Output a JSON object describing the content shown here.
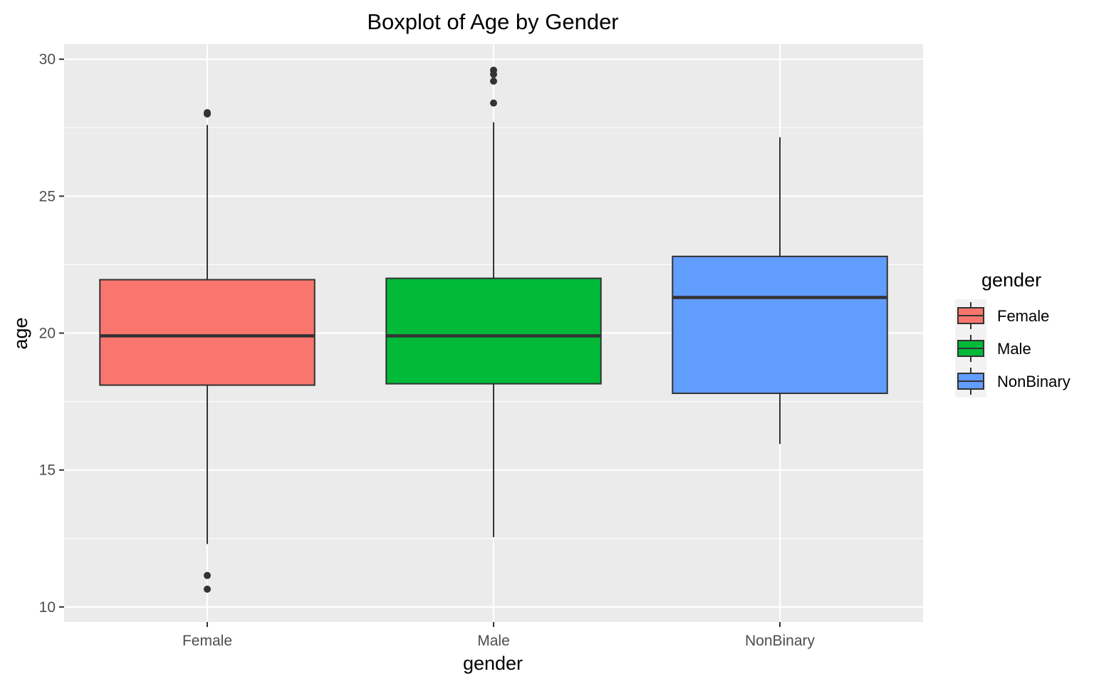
{
  "chart_data": {
    "type": "boxplot",
    "title": "Boxplot of Age by Gender",
    "xlabel": "gender",
    "ylabel": "age",
    "ylim": [
      9.45,
      30.55
    ],
    "yticks": [
      10,
      15,
      20,
      25,
      30
    ],
    "ytick_labels": [
      "10",
      "15",
      "20",
      "25",
      "30"
    ],
    "grid": true,
    "legend": {
      "title": "gender",
      "position": "right"
    },
    "categories": [
      "Female",
      "Male",
      "NonBinary"
    ],
    "series": [
      {
        "name": "Female",
        "color": "#F8766D",
        "whisker_low": 12.3,
        "q1": 18.1,
        "median": 19.9,
        "q3": 21.95,
        "whisker_high": 27.6,
        "outliers": [
          28.0,
          28.05,
          11.15,
          10.65
        ]
      },
      {
        "name": "Male",
        "color": "#00BA38",
        "whisker_low": 12.55,
        "q1": 18.15,
        "median": 19.9,
        "q3": 22.0,
        "whisker_high": 27.7,
        "outliers": [
          29.6,
          29.45,
          29.2,
          28.4
        ]
      },
      {
        "name": "NonBinary",
        "color": "#619CFF",
        "whisker_low": 15.95,
        "q1": 17.8,
        "median": 21.3,
        "q3": 22.8,
        "whisker_high": 27.15,
        "outliers": []
      }
    ]
  }
}
